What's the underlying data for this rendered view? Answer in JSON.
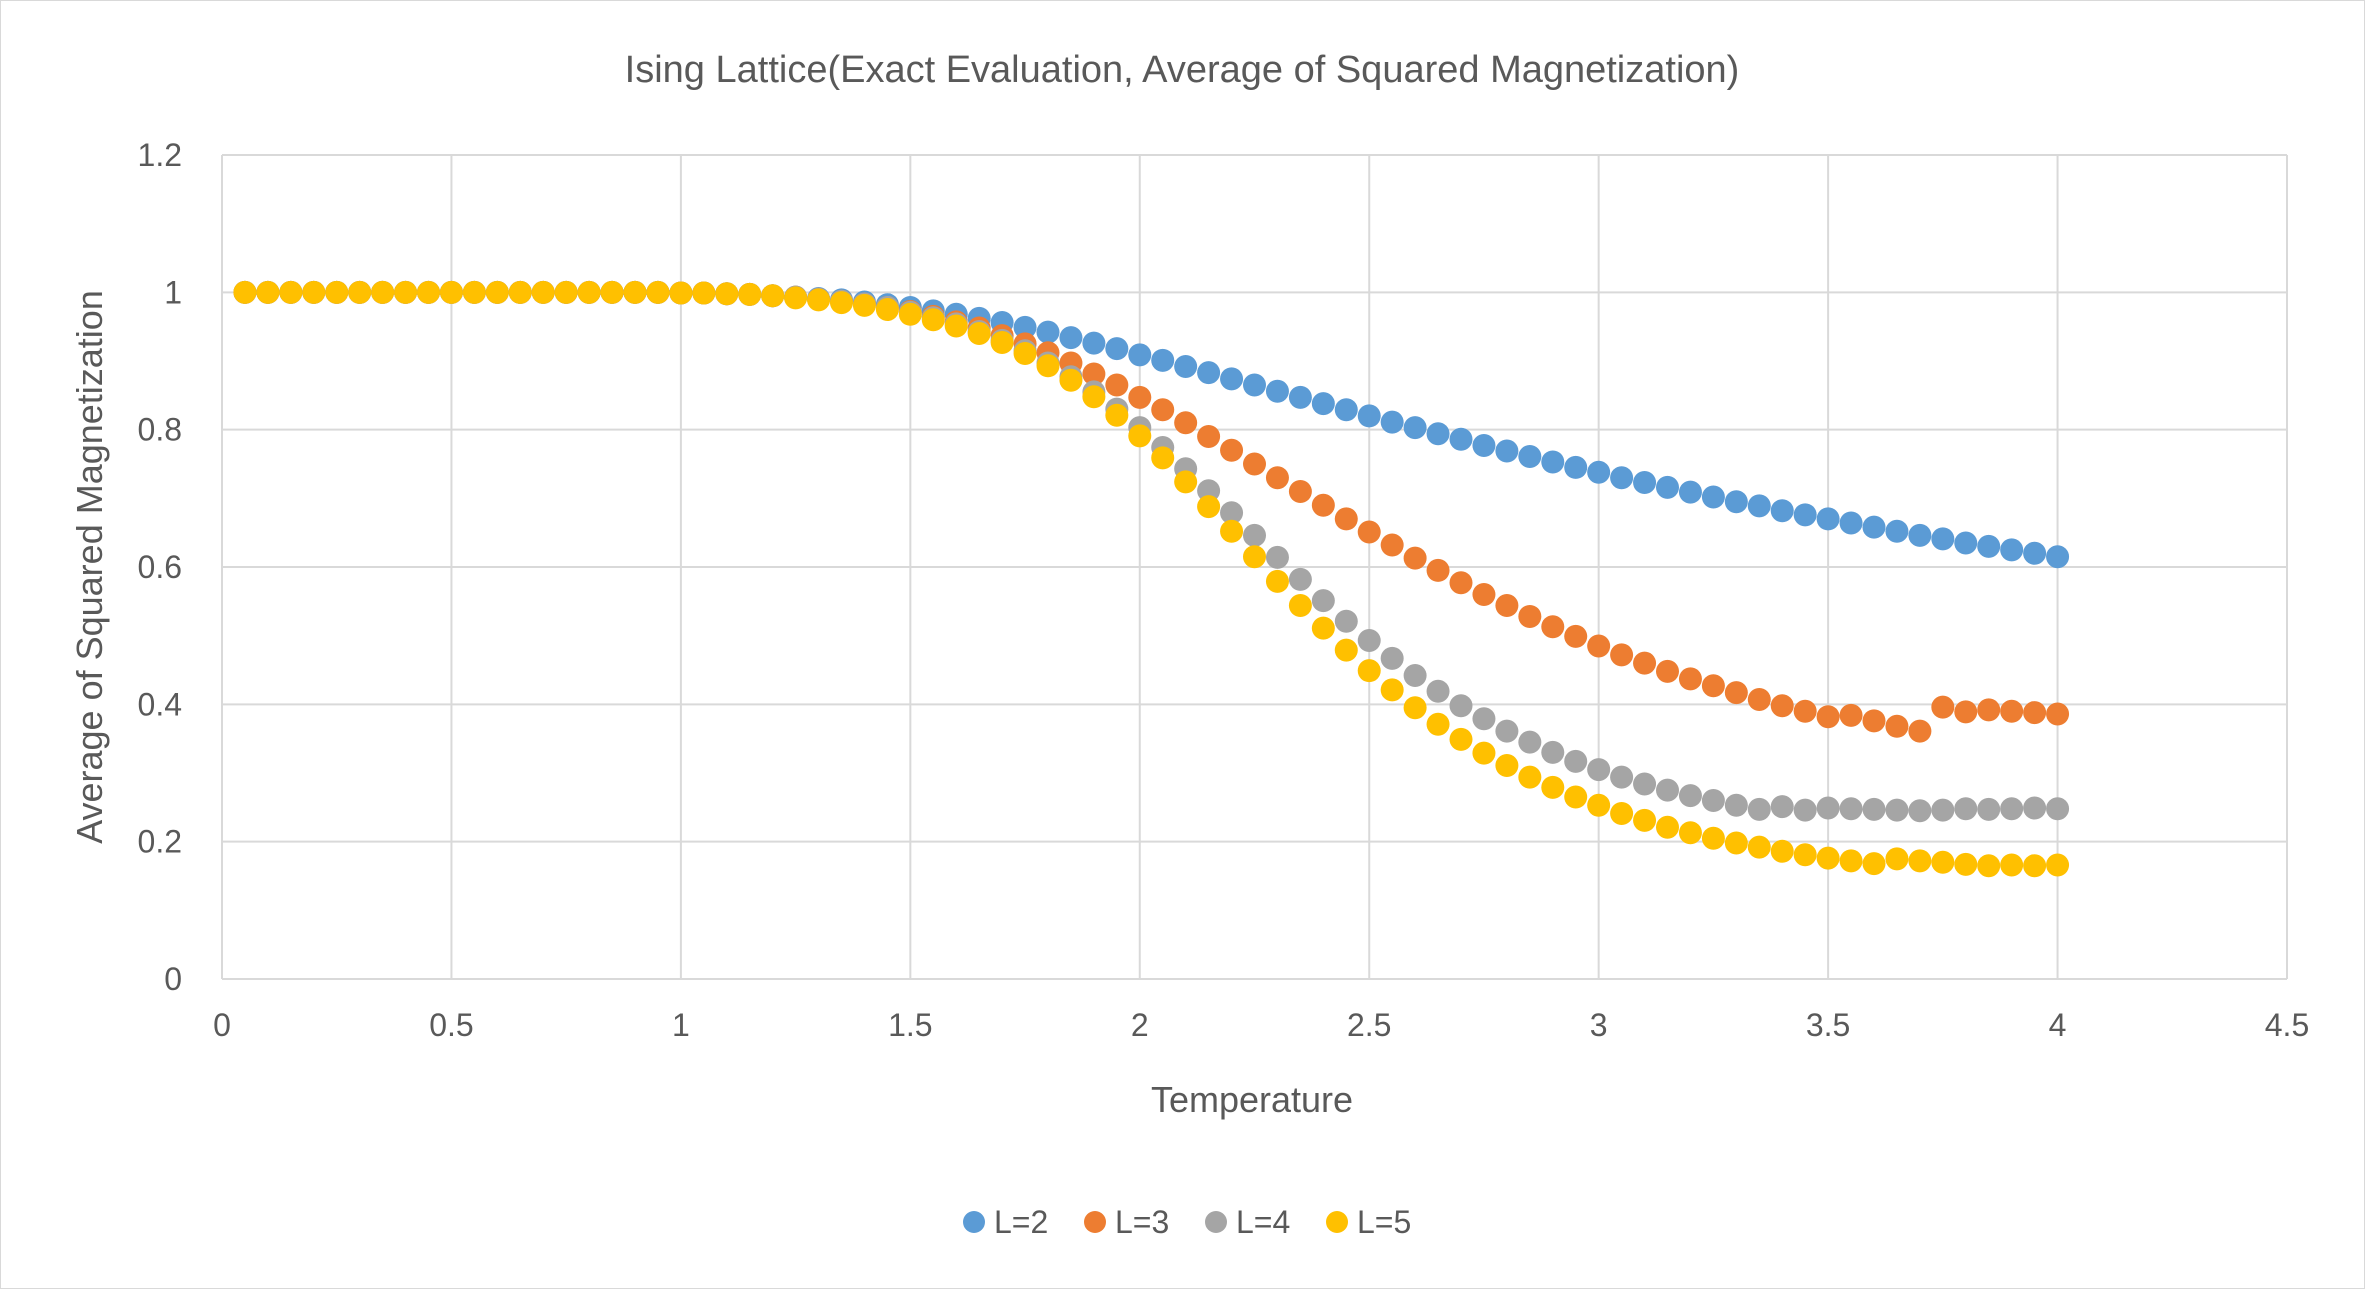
{
  "chart_data": {
    "type": "scatter",
    "title": "Ising Lattice(Exact Evaluation, Average of Squared Magnetization)",
    "xlabel": "Temperature",
    "ylabel": "Average of Squared Magnetization",
    "xlim": [
      0,
      4.5
    ],
    "ylim": [
      0,
      1.2
    ],
    "xticks": [
      0,
      0.5,
      1,
      1.5,
      2,
      2.5,
      3,
      3.5,
      4,
      4.5
    ],
    "yticks": [
      0,
      0.2,
      0.4,
      0.6,
      0.8,
      1,
      1.2
    ],
    "grid": true,
    "legend_position": "bottom",
    "x": [
      0.05,
      0.1,
      0.15,
      0.2,
      0.25,
      0.3,
      0.35,
      0.4,
      0.45,
      0.5,
      0.55,
      0.6,
      0.65,
      0.7,
      0.75,
      0.8,
      0.85,
      0.9,
      0.95,
      1,
      1.05,
      1.1,
      1.15,
      1.2,
      1.25,
      1.3,
      1.35,
      1.4,
      1.45,
      1.5,
      1.55,
      1.6,
      1.65,
      1.7,
      1.75,
      1.8,
      1.85,
      1.9,
      1.95,
      2,
      2.05,
      2.1,
      2.15,
      2.2,
      2.25,
      2.3,
      2.35,
      2.4,
      2.45,
      2.5,
      2.55,
      2.6,
      2.65,
      2.7,
      2.75,
      2.8,
      2.85,
      2.9,
      2.95,
      3,
      3.05,
      3.1,
      3.15,
      3.2,
      3.25,
      3.3,
      3.35,
      3.4,
      3.45,
      3.5,
      3.55,
      3.6,
      3.65,
      3.7,
      3.75,
      3.8,
      3.85,
      3.9,
      3.95,
      4
    ],
    "series": [
      {
        "name": "L=2",
        "color": "#5b9bd5",
        "values": [
          1,
          1,
          1,
          1,
          1,
          1,
          1,
          1,
          1,
          1,
          1,
          1,
          1,
          1,
          1,
          1,
          1,
          1,
          1,
          0.999,
          0.999,
          0.998,
          0.997,
          0.995,
          0.993,
          0.991,
          0.989,
          0.986,
          0.982,
          0.978,
          0.973,
          0.968,
          0.962,
          0.956,
          0.949,
          0.942,
          0.934,
          0.926,
          0.918,
          0.909,
          0.901,
          0.892,
          0.883,
          0.874,
          0.865,
          0.856,
          0.847,
          0.838,
          0.829,
          0.82,
          0.811,
          0.803,
          0.794,
          0.786,
          0.777,
          0.769,
          0.761,
          0.753,
          0.745,
          0.738,
          0.73,
          0.723,
          0.716,
          0.709,
          0.702,
          0.695,
          0.689,
          0.682,
          0.676,
          0.67,
          0.664,
          0.658,
          0.652,
          0.646,
          0.641,
          0.635,
          0.63,
          0.625,
          0.62,
          0.615
        ]
      },
      {
        "name": "L=3",
        "color": "#ed7d31",
        "values": [
          1,
          1,
          1,
          1,
          1,
          1,
          1,
          1,
          1,
          1,
          1,
          1,
          1,
          1,
          1,
          1,
          1,
          1,
          1,
          0.999,
          0.999,
          0.998,
          0.997,
          0.995,
          0.993,
          0.99,
          0.987,
          0.983,
          0.978,
          0.972,
          0.965,
          0.957,
          0.948,
          0.937,
          0.925,
          0.912,
          0.897,
          0.881,
          0.865,
          0.847,
          0.829,
          0.81,
          0.79,
          0.77,
          0.75,
          0.73,
          0.71,
          0.69,
          0.67,
          0.651,
          0.632,
          0.613,
          0.595,
          0.577,
          0.56,
          0.544,
          0.528,
          0.513,
          0.499,
          0.485,
          0.472,
          0.46,
          0.448,
          0.437,
          0.427,
          0.417,
          0.407,
          0.398,
          0.39,
          0.382,
          0.384,
          0.376,
          0.368,
          0.361,
          0.396,
          0.389,
          0.392,
          0.39,
          0.388,
          0.386
        ]
      },
      {
        "name": "L=4",
        "color": "#a5a5a5",
        "values": [
          1,
          1,
          1,
          1,
          1,
          1,
          1,
          1,
          1,
          1,
          1,
          1,
          1,
          1,
          1,
          1,
          1,
          1,
          1,
          0.999,
          0.999,
          0.998,
          0.997,
          0.995,
          0.993,
          0.99,
          0.987,
          0.983,
          0.978,
          0.971,
          0.963,
          0.954,
          0.943,
          0.93,
          0.915,
          0.897,
          0.877,
          0.855,
          0.83,
          0.803,
          0.774,
          0.743,
          0.711,
          0.679,
          0.646,
          0.614,
          0.582,
          0.551,
          0.521,
          0.493,
          0.467,
          0.442,
          0.419,
          0.398,
          0.379,
          0.361,
          0.345,
          0.33,
          0.317,
          0.305,
          0.294,
          0.284,
          0.275,
          0.267,
          0.26,
          0.253,
          0.247,
          0.251,
          0.246,
          0.249,
          0.248,
          0.247,
          0.246,
          0.245,
          0.246,
          0.248,
          0.247,
          0.248,
          0.249,
          0.248
        ]
      },
      {
        "name": "L=5",
        "color": "#ffc000",
        "values": [
          1,
          1,
          1,
          1,
          1,
          1,
          1,
          1,
          1,
          1,
          1,
          1,
          1,
          1,
          1,
          1,
          1,
          1,
          1,
          0.999,
          0.999,
          0.998,
          0.997,
          0.995,
          0.992,
          0.989,
          0.985,
          0.981,
          0.975,
          0.968,
          0.96,
          0.951,
          0.94,
          0.927,
          0.911,
          0.893,
          0.872,
          0.848,
          0.821,
          0.791,
          0.759,
          0.724,
          0.688,
          0.652,
          0.615,
          0.579,
          0.544,
          0.511,
          0.479,
          0.449,
          0.421,
          0.395,
          0.371,
          0.349,
          0.329,
          0.311,
          0.294,
          0.279,
          0.265,
          0.253,
          0.241,
          0.231,
          0.221,
          0.213,
          0.205,
          0.198,
          0.192,
          0.186,
          0.181,
          0.176,
          0.172,
          0.168,
          0.175,
          0.172,
          0.17,
          0.167,
          0.165,
          0.166,
          0.165,
          0.166
        ]
      }
    ]
  }
}
